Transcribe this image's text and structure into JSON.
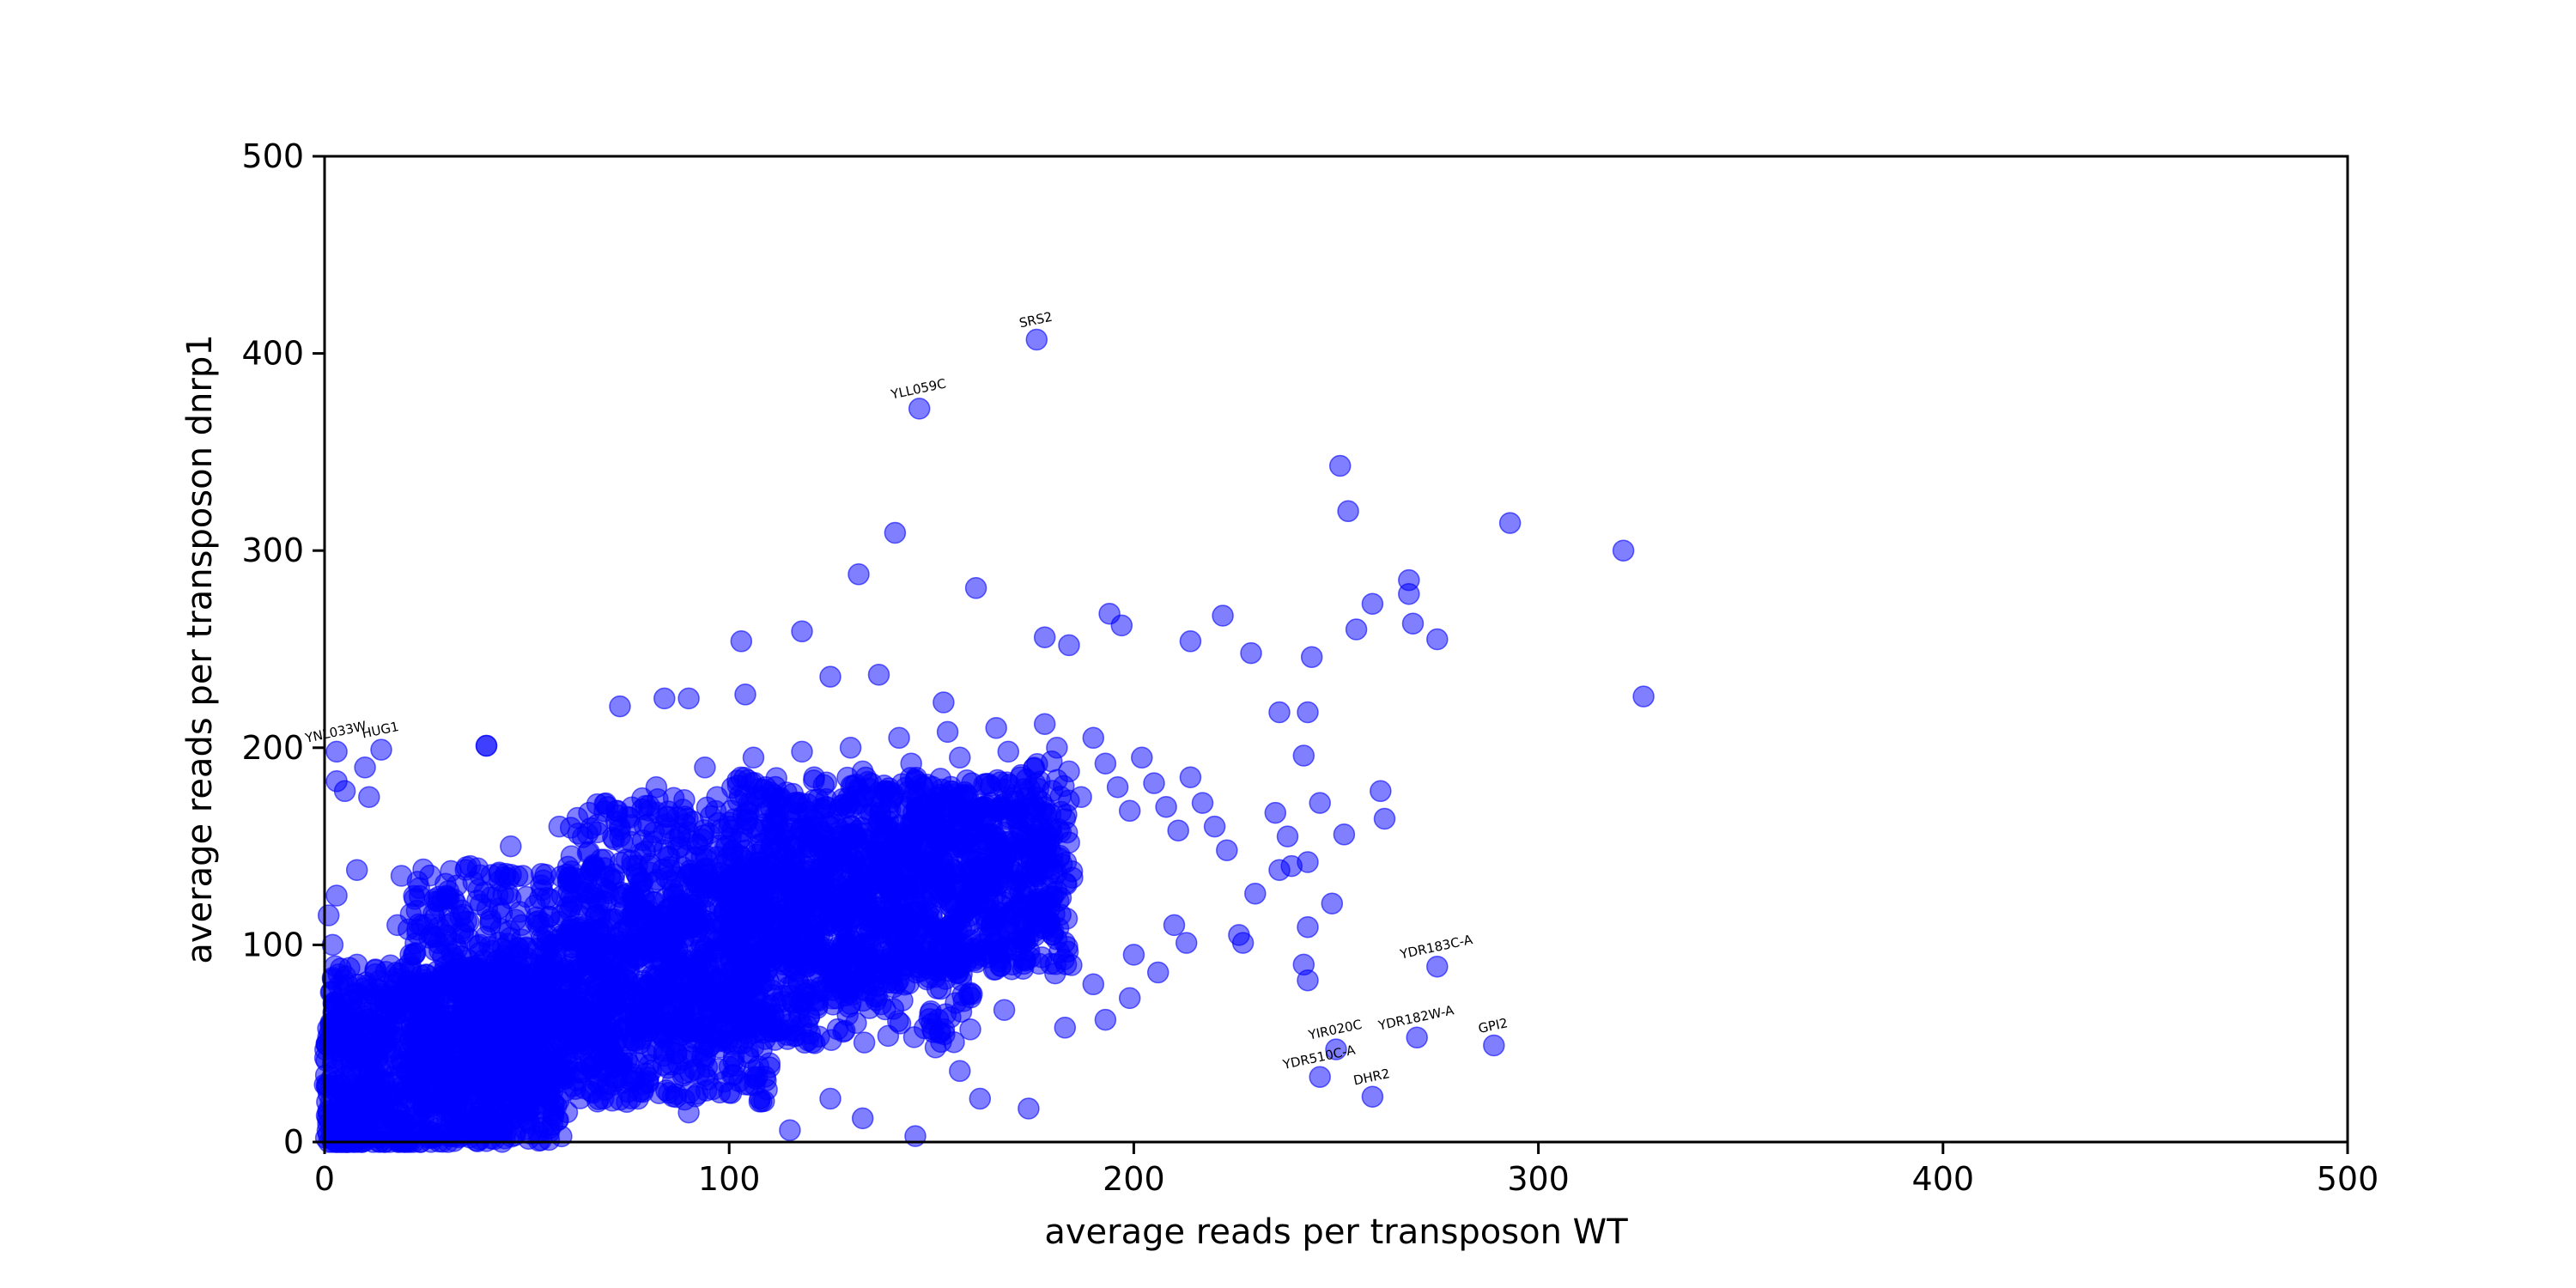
{
  "chart_data": {
    "type": "scatter",
    "title": "",
    "xlabel": "average reads per transposon WT",
    "ylabel": "average reads per transposon dnrp1",
    "xlim": [
      0,
      500
    ],
    "ylim": [
      0,
      500
    ],
    "xticks": [
      0,
      100,
      200,
      300,
      400,
      500
    ],
    "yticks": [
      0,
      100,
      200,
      300,
      400,
      500
    ],
    "grid": false,
    "legend": "none",
    "marker_color": "#0000ff",
    "marker_alpha": 0.5,
    "points": [
      [
        176,
        407
      ],
      [
        147,
        372
      ],
      [
        141,
        309
      ],
      [
        132,
        288
      ],
      [
        161,
        281
      ],
      [
        251,
        343
      ],
      [
        253,
        320
      ],
      [
        259,
        273
      ],
      [
        268,
        285
      ],
      [
        268,
        278
      ],
      [
        269,
        263
      ],
      [
        275,
        255
      ],
      [
        293,
        314
      ],
      [
        321,
        300
      ],
      [
        326,
        226
      ],
      [
        244,
        246
      ],
      [
        222,
        267
      ],
      [
        229,
        248
      ],
      [
        194,
        268
      ],
      [
        197,
        262
      ],
      [
        118,
        259
      ],
      [
        103,
        254
      ],
      [
        178,
        256
      ],
      [
        184,
        252
      ],
      [
        214,
        254
      ],
      [
        255,
        260
      ],
      [
        236,
        218
      ],
      [
        243,
        218
      ],
      [
        242,
        196
      ],
      [
        246,
        172
      ],
      [
        261,
        178
      ],
      [
        262,
        164
      ],
      [
        252,
        156
      ],
      [
        235,
        167
      ],
      [
        238,
        155
      ],
      [
        243,
        142
      ],
      [
        239,
        140
      ],
      [
        236,
        138
      ],
      [
        230,
        126
      ],
      [
        249,
        121
      ],
      [
        243,
        109
      ],
      [
        226,
        105
      ],
      [
        227,
        101
      ],
      [
        242,
        90
      ],
      [
        243,
        82
      ],
      [
        3,
        198
      ],
      [
        14,
        199
      ],
      [
        10,
        190
      ],
      [
        3,
        183
      ],
      [
        5,
        178
      ],
      [
        11,
        175
      ],
      [
        40,
        201
      ],
      [
        40,
        201
      ],
      [
        73,
        221
      ],
      [
        84,
        225
      ],
      [
        90,
        225
      ],
      [
        104,
        227
      ],
      [
        125,
        236
      ],
      [
        137,
        237
      ],
      [
        153,
        223
      ],
      [
        8,
        138
      ],
      [
        19,
        135
      ],
      [
        23,
        132
      ],
      [
        3,
        125
      ],
      [
        1,
        115
      ],
      [
        2,
        100
      ],
      [
        4,
        88
      ],
      [
        3,
        70
      ],
      [
        6,
        55
      ],
      [
        2,
        40
      ],
      [
        5,
        25
      ],
      [
        3,
        10
      ],
      [
        8,
        90
      ],
      [
        12,
        75
      ],
      [
        15,
        60
      ],
      [
        18,
        110
      ],
      [
        22,
        95
      ],
      [
        25,
        80
      ],
      [
        28,
        120
      ],
      [
        30,
        105
      ],
      [
        33,
        90
      ],
      [
        36,
        140
      ],
      [
        38,
        128
      ],
      [
        41,
        112
      ],
      [
        44,
        98
      ],
      [
        46,
        150
      ],
      [
        49,
        135
      ],
      [
        52,
        120
      ],
      [
        55,
        105
      ],
      [
        58,
        160
      ],
      [
        61,
        145
      ],
      [
        64,
        130
      ],
      [
        67,
        115
      ],
      [
        70,
        170
      ],
      [
        73,
        155
      ],
      [
        76,
        140
      ],
      [
        79,
        125
      ],
      [
        82,
        180
      ],
      [
        85,
        165
      ],
      [
        88,
        150
      ],
      [
        91,
        135
      ],
      [
        94,
        190
      ],
      [
        97,
        175
      ],
      [
        100,
        160
      ],
      [
        103,
        145
      ],
      [
        106,
        195
      ],
      [
        109,
        180
      ],
      [
        112,
        165
      ],
      [
        115,
        150
      ],
      [
        118,
        198
      ],
      [
        121,
        185
      ],
      [
        124,
        170
      ],
      [
        127,
        155
      ],
      [
        130,
        200
      ],
      [
        133,
        188
      ],
      [
        136,
        175
      ],
      [
        139,
        160
      ],
      [
        142,
        205
      ],
      [
        145,
        192
      ],
      [
        148,
        180
      ],
      [
        151,
        165
      ],
      [
        154,
        208
      ],
      [
        157,
        195
      ],
      [
        160,
        182
      ],
      [
        163,
        170
      ],
      [
        166,
        210
      ],
      [
        169,
        198
      ],
      [
        172,
        185
      ],
      [
        175,
        172
      ],
      [
        178,
        212
      ],
      [
        181,
        200
      ],
      [
        184,
        188
      ],
      [
        187,
        175
      ],
      [
        190,
        205
      ],
      [
        193,
        192
      ],
      [
        196,
        180
      ],
      [
        199,
        168
      ],
      [
        202,
        195
      ],
      [
        205,
        182
      ],
      [
        208,
        170
      ],
      [
        211,
        158
      ],
      [
        214,
        185
      ],
      [
        217,
        172
      ],
      [
        220,
        160
      ],
      [
        223,
        148
      ],
      [
        60,
        60
      ],
      [
        70,
        45
      ],
      [
        80,
        30
      ],
      [
        90,
        15
      ],
      [
        100,
        25
      ],
      [
        110,
        40
      ],
      [
        120,
        55
      ],
      [
        130,
        70
      ],
      [
        140,
        85
      ],
      [
        150,
        60
      ],
      [
        160,
        75
      ],
      [
        170,
        90
      ],
      [
        180,
        105
      ],
      [
        190,
        80
      ],
      [
        200,
        95
      ],
      [
        210,
        110
      ],
      [
        125,
        22
      ],
      [
        133,
        12
      ],
      [
        146,
        3
      ],
      [
        115,
        6
      ],
      [
        174,
        17
      ],
      [
        162,
        22
      ],
      [
        151,
        48
      ],
      [
        157,
        36
      ],
      [
        168,
        67
      ],
      [
        183,
        58
      ],
      [
        193,
        62
      ],
      [
        199,
        73
      ],
      [
        206,
        86
      ],
      [
        213,
        101
      ],
      [
        246,
        33
      ],
      [
        250,
        47
      ],
      [
        259,
        23
      ],
      [
        270,
        53
      ],
      [
        289,
        49
      ],
      [
        275,
        89
      ]
    ],
    "cloud_regions": [
      {
        "x": [
          0,
          60
        ],
        "y": [
          0,
          90
        ]
      },
      {
        "x": [
          20,
          110
        ],
        "y": [
          20,
          140
        ]
      },
      {
        "x": [
          60,
          160
        ],
        "y": [
          50,
          175
        ]
      },
      {
        "x": [
          100,
          185
        ],
        "y": [
          85,
          185
        ]
      }
    ],
    "annotations": [
      {
        "text": "SRS2",
        "x": 176,
        "y": 407
      },
      {
        "text": "YLL059C",
        "x": 147,
        "y": 372
      },
      {
        "text": "YNL033W",
        "x": 3,
        "y": 198
      },
      {
        "text": "HUG1",
        "x": 14,
        "y": 199
      },
      {
        "text": "YDR183C-A",
        "x": 275,
        "y": 89
      },
      {
        "text": "YDR182W-A",
        "x": 270,
        "y": 53
      },
      {
        "text": "GPI2",
        "x": 289,
        "y": 49
      },
      {
        "text": "YIR020C",
        "x": 250,
        "y": 47
      },
      {
        "text": "YDR510C-A",
        "x": 246,
        "y": 33
      },
      {
        "text": "DHR2",
        "x": 259,
        "y": 23
      }
    ]
  }
}
